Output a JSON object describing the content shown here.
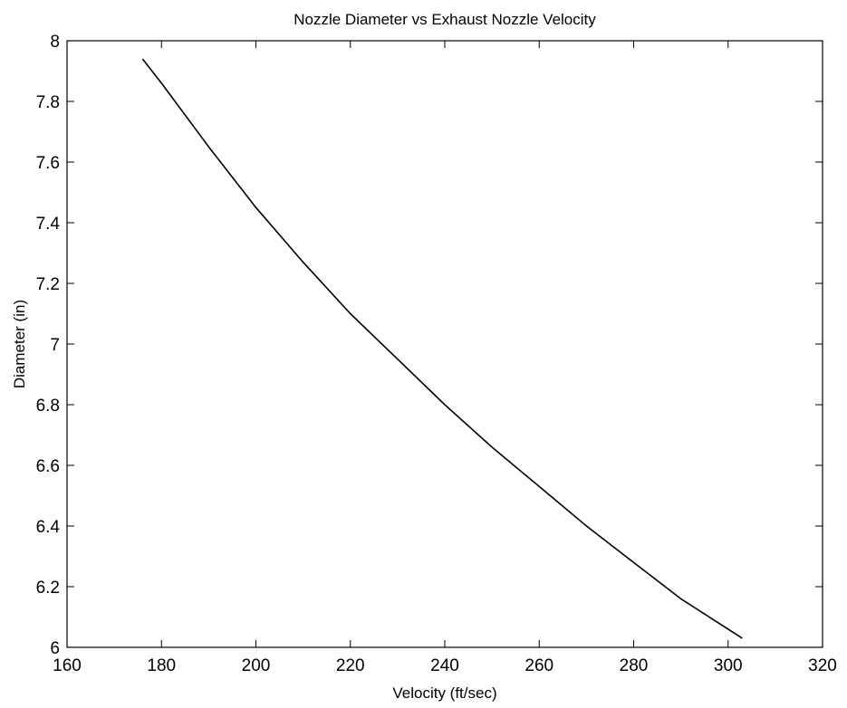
{
  "chart_data": {
    "type": "line",
    "title": "Nozzle Diameter vs Exhaust Nozzle Velocity",
    "xlabel": "Velocity (ft/sec)",
    "ylabel": "Diameter (in)",
    "xlim": [
      160,
      320
    ],
    "ylim": [
      6,
      8
    ],
    "xticks": [
      160,
      180,
      200,
      220,
      240,
      260,
      280,
      300,
      320
    ],
    "xtick_labels": [
      "160",
      "180",
      "200",
      "220",
      "240",
      "260",
      "280",
      "300",
      "320"
    ],
    "yticks": [
      6,
      6.2,
      6.4,
      6.6,
      6.8,
      7,
      7.2,
      7.4,
      7.6,
      7.8,
      8
    ],
    "ytick_labels": [
      "6",
      "6.2",
      "6.4",
      "6.6",
      "6.8",
      "7",
      "7.2",
      "7.4",
      "7.6",
      "7.8",
      "8"
    ],
    "grid": false,
    "legend": "none",
    "line_color": "#000000",
    "series": [
      {
        "x": [
          176,
          180,
          190,
          200,
          210,
          220,
          230,
          240,
          250,
          260,
          270,
          280,
          290,
          300,
          303
        ],
        "y": [
          7.94,
          7.86,
          7.65,
          7.45,
          7.27,
          7.1,
          6.95,
          6.8,
          6.66,
          6.53,
          6.4,
          6.28,
          6.16,
          6.06,
          6.03
        ]
      }
    ]
  }
}
